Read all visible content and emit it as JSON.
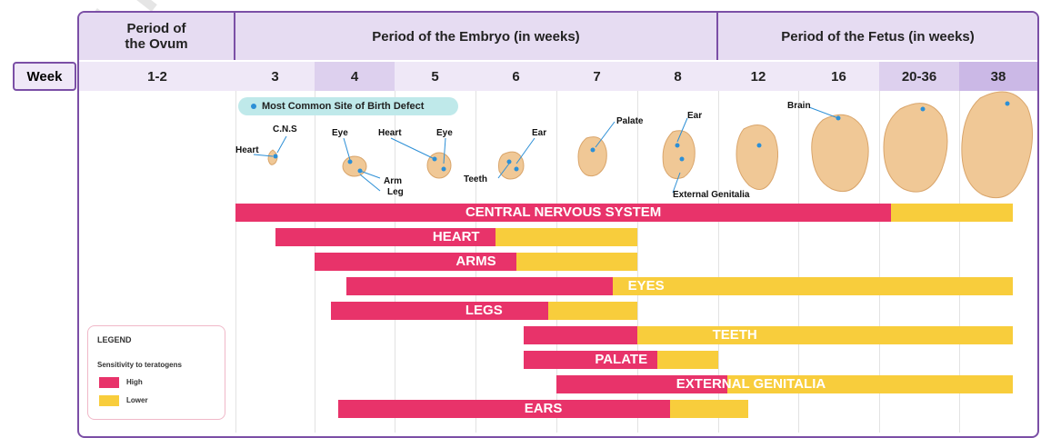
{
  "header": {
    "ovum": "Period of\nthe Ovum",
    "embryo": "Period of the Embryo (in weeks)",
    "fetus": "Period of the Fetus (in weeks)",
    "week_label": "Week",
    "weeks": [
      "1-2",
      "3",
      "4",
      "5",
      "6",
      "7",
      "8",
      "12",
      "16",
      "20-36",
      "38"
    ]
  },
  "callout": "Most Common Site of Birth Defect",
  "organ_labels": {
    "heart1": "Heart",
    "cns": "C.N.S",
    "eye1": "Eye",
    "heart2": "Heart",
    "eye2": "Eye",
    "arm": "Arm",
    "leg": "Leg",
    "teeth": "Teeth",
    "ear1": "Ear",
    "palate": "Palate",
    "ear2": "Ear",
    "genitalia": "External Genitalia",
    "brain": "Brain"
  },
  "bars": [
    {
      "label": "CENTRAL NERVOUS SYSTEM",
      "high_start": 3,
      "high_end": 20,
      "low_end": 38
    },
    {
      "label": "HEART",
      "high_start": 3.5,
      "high_end": 6.25,
      "low_end": 8
    },
    {
      "label": "ARMS",
      "high_start": 4,
      "high_end": 6.5,
      "low_end": 8
    },
    {
      "label": "EYES",
      "high_start": 4.4,
      "high_end": 7.7,
      "low_end": 38
    },
    {
      "label": "LEGS",
      "high_start": 4.2,
      "high_end": 6.9,
      "low_end": 8
    },
    {
      "label": "TEETH",
      "high_start": 6.6,
      "high_end": 8,
      "low_end": 38
    },
    {
      "label": "PALATE",
      "high_start": 6.6,
      "high_end": 8.25,
      "low_end": 9
    },
    {
      "label": "EXTERNAL GENITALIA",
      "high_start": 7,
      "high_end": 9.4,
      "low_end": 38
    },
    {
      "label": "EARS",
      "high_start": 4.3,
      "high_end": 8.4,
      "low_end": 10.3
    }
  ],
  "legend": {
    "title": "LEGEND",
    "subtitle": "Sensitivity to teratogens",
    "high": "High",
    "low": "Lower"
  },
  "colors": {
    "high": "#e8336a",
    "low": "#f8cd3c",
    "frame": "#7b4fa6"
  },
  "watermark": "Licensed to Ra"
}
